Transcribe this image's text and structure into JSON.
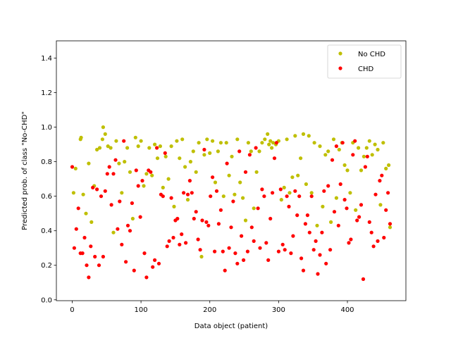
{
  "chart_data": {
    "type": "scatter",
    "title": "",
    "xlabel": "Data object (patient)",
    "ylabel": "Predicted prob. of class \"No-CHD\"",
    "xlim": [
      -23,
      485
    ],
    "ylim": [
      -0.005,
      1.5
    ],
    "x_ticks": [
      0,
      100,
      200,
      300,
      400
    ],
    "y_ticks": [
      0.0,
      0.2,
      0.4,
      0.6,
      0.8,
      1.0,
      1.2,
      1.4
    ],
    "y_tick_labels": [
      "0.0",
      "0.2",
      "0.4",
      "0.6",
      "0.8",
      "1.0",
      "1.2",
      "1.4"
    ],
    "grid": false,
    "legend_position": "top-right",
    "series": [
      {
        "name": "No CHD",
        "color": "#bfbf00",
        "x": [
          2,
          5,
          12,
          13,
          16,
          20,
          24,
          28,
          32,
          36,
          40,
          44,
          45,
          48,
          52,
          56,
          60,
          64,
          68,
          72,
          76,
          80,
          84,
          88,
          92,
          96,
          100,
          104,
          108,
          112,
          116,
          120,
          124,
          128,
          132,
          136,
          140,
          144,
          148,
          152,
          156,
          160,
          164,
          168,
          172,
          176,
          180,
          184,
          188,
          192,
          196,
          200,
          204,
          208,
          212,
          216,
          220,
          224,
          228,
          232,
          236,
          240,
          244,
          248,
          252,
          256,
          260,
          264,
          268,
          272,
          276,
          280,
          284,
          286,
          288,
          290,
          292,
          296,
          300,
          304,
          308,
          312,
          316,
          320,
          324,
          328,
          332,
          336,
          340,
          344,
          348,
          352,
          356,
          360,
          364,
          368,
          372,
          376,
          380,
          384,
          388,
          392,
          396,
          400,
          404,
          408,
          412,
          416,
          420,
          424,
          428,
          432,
          436,
          440,
          444,
          448,
          452,
          456,
          460,
          462
        ],
        "y": [
          0.62,
          0.76,
          0.93,
          0.94,
          0.61,
          0.5,
          0.79,
          0.45,
          0.66,
          0.87,
          0.88,
          0.93,
          1.0,
          0.96,
          0.89,
          0.88,
          0.39,
          0.92,
          0.79,
          0.62,
          0.8,
          0.88,
          0.74,
          0.47,
          0.94,
          0.89,
          0.92,
          0.66,
          0.73,
          0.88,
          0.72,
          0.9,
          0.82,
          0.89,
          0.65,
          0.83,
          0.7,
          0.89,
          0.54,
          0.92,
          0.82,
          0.93,
          0.77,
          0.58,
          0.8,
          0.86,
          0.74,
          0.91,
          0.25,
          0.84,
          0.93,
          0.85,
          0.92,
          0.68,
          0.86,
          0.91,
          0.6,
          0.91,
          0.72,
          0.83,
          0.61,
          0.93,
          0.68,
          0.59,
          0.46,
          0.91,
          0.86,
          0.53,
          0.74,
          0.86,
          0.91,
          0.93,
          0.96,
          0.9,
          0.92,
          0.88,
          0.91,
          0.9,
          0.92,
          0.58,
          0.65,
          0.93,
          0.62,
          0.71,
          0.95,
          0.72,
          0.82,
          0.96,
          0.67,
          0.95,
          0.62,
          0.91,
          0.43,
          0.89,
          0.54,
          0.84,
          0.86,
          0.45,
          0.93,
          0.59,
          0.87,
          0.91,
          0.78,
          0.75,
          0.62,
          0.91,
          0.52,
          0.88,
          0.75,
          0.83,
          0.88,
          0.92,
          0.84,
          0.9,
          0.87,
          0.55,
          0.91,
          0.76,
          0.78,
          0.42
        ]
      },
      {
        "name": "CHD",
        "color": "#ff0000",
        "x": [
          0,
          3,
          6,
          9,
          12,
          15,
          18,
          21,
          24,
          27,
          30,
          33,
          36,
          39,
          42,
          45,
          48,
          51,
          54,
          57,
          60,
          63,
          66,
          69,
          72,
          75,
          78,
          81,
          84,
          87,
          90,
          93,
          96,
          99,
          102,
          105,
          108,
          111,
          114,
          117,
          120,
          123,
          126,
          129,
          132,
          135,
          138,
          141,
          144,
          147,
          150,
          153,
          156,
          159,
          162,
          165,
          168,
          171,
          174,
          177,
          180,
          183,
          186,
          189,
          192,
          195,
          198,
          201,
          204,
          207,
          210,
          213,
          216,
          219,
          222,
          225,
          228,
          231,
          234,
          237,
          240,
          243,
          246,
          249,
          252,
          255,
          258,
          261,
          264,
          267,
          270,
          273,
          276,
          279,
          282,
          285,
          288,
          291,
          294,
          297,
          300,
          303,
          306,
          309,
          312,
          315,
          318,
          321,
          324,
          327,
          330,
          333,
          336,
          339,
          342,
          345,
          348,
          351,
          354,
          357,
          360,
          363,
          366,
          369,
          372,
          375,
          378,
          381,
          384,
          387,
          390,
          393,
          396,
          399,
          402,
          405,
          408,
          411,
          414,
          417,
          420,
          423,
          426,
          429,
          432,
          435,
          438,
          441,
          444,
          447,
          450,
          453,
          456,
          459,
          462
        ],
        "y": [
          0.77,
          0.3,
          0.41,
          0.53,
          0.27,
          0.27,
          0.36,
          0.2,
          0.13,
          0.31,
          0.65,
          0.25,
          0.64,
          0.2,
          0.6,
          0.25,
          0.63,
          0.73,
          0.77,
          0.55,
          0.73,
          0.81,
          0.41,
          0.57,
          0.32,
          0.92,
          0.22,
          0.43,
          0.4,
          0.56,
          0.17,
          0.75,
          0.66,
          0.48,
          0.69,
          0.27,
          0.13,
          0.75,
          0.74,
          0.19,
          0.23,
          0.88,
          0.21,
          0.61,
          0.6,
          0.85,
          0.31,
          0.34,
          0.59,
          0.36,
          0.46,
          0.47,
          0.32,
          0.38,
          0.62,
          0.33,
          0.61,
          0.69,
          0.62,
          0.47,
          0.51,
          0.35,
          0.29,
          0.46,
          0.87,
          0.45,
          0.43,
          0.6,
          0.71,
          0.28,
          0.63,
          0.44,
          0.52,
          0.28,
          0.17,
          0.79,
          0.3,
          0.42,
          0.57,
          0.27,
          0.21,
          0.86,
          0.37,
          0.23,
          0.74,
          0.28,
          0.84,
          0.42,
          0.34,
          0.88,
          0.53,
          0.3,
          0.64,
          0.6,
          0.33,
          0.23,
          0.47,
          0.62,
          0.82,
          0.91,
          0.28,
          0.64,
          0.32,
          0.29,
          0.6,
          0.54,
          0.27,
          0.37,
          0.63,
          0.49,
          0.6,
          0.24,
          0.17,
          0.44,
          0.49,
          0.39,
          0.6,
          0.29,
          0.34,
          0.15,
          0.26,
          0.39,
          0.63,
          0.21,
          0.66,
          0.29,
          0.81,
          0.51,
          0.89,
          0.43,
          0.67,
          0.91,
          0.58,
          0.53,
          0.33,
          0.35,
          0.84,
          0.92,
          0.46,
          0.48,
          0.55,
          0.12,
          0.77,
          0.83,
          0.45,
          0.39,
          0.31,
          0.61,
          0.34,
          0.69,
          0.72,
          0.36,
          0.52,
          0.62,
          0.44
        ]
      }
    ]
  }
}
